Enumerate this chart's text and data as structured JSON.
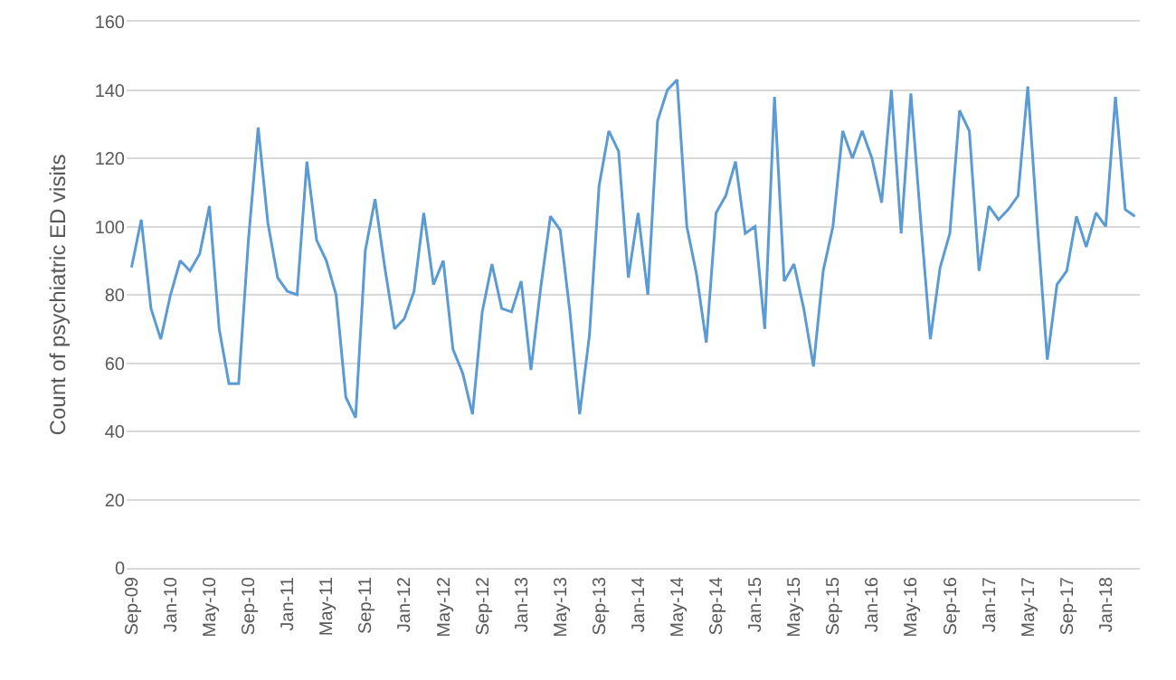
{
  "chart_data": {
    "type": "line",
    "ylabel": "Count of psychiatric ED visits",
    "categories": [
      "Sep-09",
      null,
      null,
      null,
      "Jan-10",
      null,
      null,
      null,
      "May-10",
      null,
      null,
      null,
      "Sep-10",
      null,
      null,
      null,
      "Jan-11",
      null,
      null,
      null,
      "May-11",
      null,
      null,
      null,
      "Sep-11",
      null,
      null,
      null,
      "Jan-12",
      null,
      null,
      null,
      "May-12",
      null,
      null,
      null,
      "Sep-12",
      null,
      null,
      null,
      "Jan-13",
      null,
      null,
      null,
      "May-13",
      null,
      null,
      null,
      "Sep-13",
      null,
      null,
      null,
      "Jan-14",
      null,
      null,
      null,
      "May-14",
      null,
      null,
      null,
      "Sep-14",
      null,
      null,
      null,
      "Jan-15",
      null,
      null,
      null,
      "May-15",
      null,
      null,
      null,
      "Sep-15",
      null,
      null,
      null,
      "Jan-16",
      null,
      null,
      null,
      "May-16",
      null,
      null,
      null,
      "Sep-16",
      null,
      null,
      null,
      "Jan-17",
      null,
      null,
      null,
      "May-17",
      null,
      null,
      null,
      "Sep-17",
      null,
      null,
      null,
      "Jan-18",
      null,
      null,
      null
    ],
    "series": [
      {
        "color": "#5b9bd5",
        "values": [
          88,
          102,
          76,
          67,
          80,
          90,
          87,
          92,
          106,
          70,
          54,
          54,
          96,
          129,
          101,
          85,
          81,
          80,
          119,
          96,
          90,
          80,
          50,
          44,
          93,
          108,
          88,
          70,
          73,
          81,
          104,
          83,
          90,
          64,
          57,
          45,
          75,
          89,
          76,
          75,
          84,
          58,
          82,
          103,
          99,
          75,
          45,
          68,
          112,
          128,
          122,
          85,
          104,
          80,
          131,
          140,
          143,
          100,
          86,
          66,
          104,
          109,
          119,
          98,
          100,
          70,
          138,
          84,
          89,
          76,
          59,
          87,
          100,
          128,
          120,
          128,
          120,
          107,
          140,
          98,
          139,
          102,
          67,
          88,
          98,
          134,
          128,
          87,
          106,
          102,
          105,
          109,
          141,
          100,
          61,
          83,
          87,
          103,
          94,
          104,
          100,
          138,
          105,
          103
        ]
      }
    ],
    "ylim": [
      0,
      160
    ],
    "yticks": [
      0,
      20,
      40,
      60,
      80,
      100,
      120,
      140,
      160
    ],
    "grid": "y",
    "marker": "none",
    "line_style": "solid"
  }
}
